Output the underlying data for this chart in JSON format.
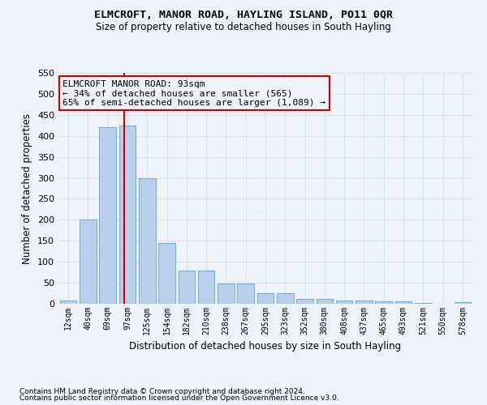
{
  "title": "ELMCROFT, MANOR ROAD, HAYLING ISLAND, PO11 0QR",
  "subtitle": "Size of property relative to detached houses in South Hayling",
  "xlabel": "Distribution of detached houses by size in South Hayling",
  "ylabel": "Number of detached properties",
  "footnote1": "Contains HM Land Registry data © Crown copyright and database right 2024.",
  "footnote2": "Contains public sector information licensed under the Open Government Licence v3.0.",
  "annotation_title": "ELMCROFT MANOR ROAD: 93sqm",
  "annotation_line2": "← 34% of detached houses are smaller (565)",
  "annotation_line3": "65% of semi-detached houses are larger (1,089) →",
  "bar_categories": [
    "12sqm",
    "40sqm",
    "69sqm",
    "97sqm",
    "125sqm",
    "154sqm",
    "182sqm",
    "210sqm",
    "238sqm",
    "267sqm",
    "295sqm",
    "323sqm",
    "352sqm",
    "380sqm",
    "408sqm",
    "437sqm",
    "465sqm",
    "493sqm",
    "521sqm",
    "550sqm",
    "578sqm"
  ],
  "bar_values": [
    8,
    200,
    420,
    424,
    300,
    145,
    79,
    79,
    48,
    48,
    25,
    25,
    11,
    11,
    8,
    8,
    5,
    5,
    1,
    0,
    3
  ],
  "bar_color": "#b8d0eb",
  "bar_edge_color": "#7aaed6",
  "vline_x_index": 2.85,
  "vline_color": "#cc0000",
  "annotation_box_color": "#cc0000",
  "ylim": [
    0,
    550
  ],
  "yticks": [
    0,
    50,
    100,
    150,
    200,
    250,
    300,
    350,
    400,
    450,
    500,
    550
  ],
  "background_color": "#eef2f9",
  "grid_color": "#d8e2f0"
}
